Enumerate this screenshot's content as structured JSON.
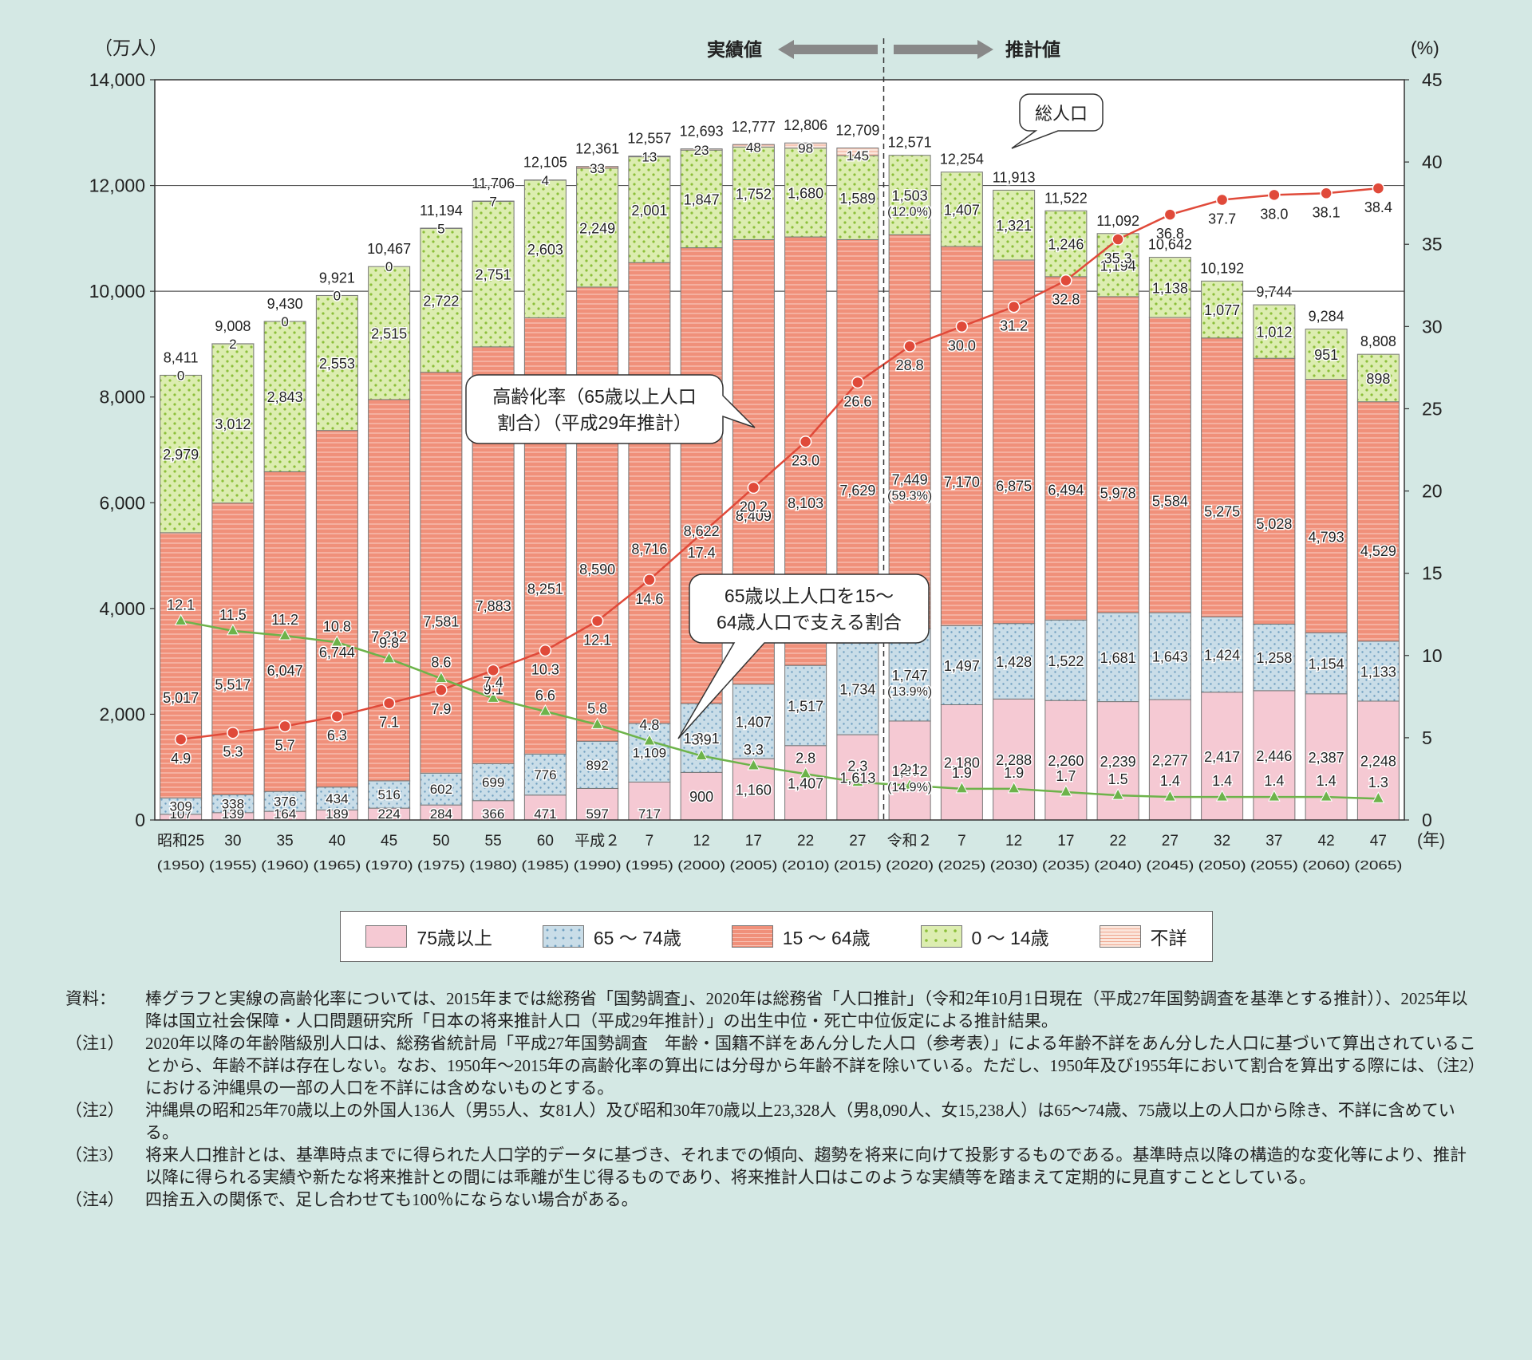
{
  "chart_data": {
    "type": "bar",
    "stacked": true,
    "y_unit_left": "（万人）",
    "y_unit_right": "(%)",
    "x_unit": "(年)",
    "ylim_left": [
      0,
      14000
    ],
    "ylim_right": [
      0,
      45
    ],
    "left_ticks": [
      "0",
      "2,000",
      "4,000",
      "6,000",
      "8,000",
      "10,000",
      "12,000",
      "14,000"
    ],
    "right_ticks": [
      "0",
      "5",
      "10",
      "15",
      "20",
      "25",
      "30",
      "35",
      "40",
      "45"
    ],
    "categories": [
      {
        "era": "昭和25",
        "year": "(1950)"
      },
      {
        "era": "30",
        "year": "(1955)"
      },
      {
        "era": "35",
        "year": "(1960)"
      },
      {
        "era": "40",
        "year": "(1965)"
      },
      {
        "era": "45",
        "year": "(1970)"
      },
      {
        "era": "50",
        "year": "(1975)"
      },
      {
        "era": "55",
        "year": "(1980)"
      },
      {
        "era": "60",
        "year": "(1985)"
      },
      {
        "era": "平成２",
        "year": "(1990)"
      },
      {
        "era": "7",
        "year": "(1995)"
      },
      {
        "era": "12",
        "year": "(2000)"
      },
      {
        "era": "17",
        "year": "(2005)"
      },
      {
        "era": "22",
        "year": "(2010)"
      },
      {
        "era": "27",
        "year": "(2015)"
      },
      {
        "era": "令和２",
        "year": "(2020)"
      },
      {
        "era": "7",
        "year": "(2025)"
      },
      {
        "era": "12",
        "year": "(2030)"
      },
      {
        "era": "17",
        "year": "(2035)"
      },
      {
        "era": "22",
        "year": "(2040)"
      },
      {
        "era": "27",
        "year": "(2045)"
      },
      {
        "era": "32",
        "year": "(2050)"
      },
      {
        "era": "37",
        "year": "(2055)"
      },
      {
        "era": "42",
        "year": "(2060)"
      },
      {
        "era": "47",
        "year": "(2065)"
      }
    ],
    "series": [
      {
        "name": "75歳以上",
        "color": "#f5c9d3",
        "pattern": "plain",
        "values": [
          107,
          139,
          164,
          189,
          224,
          284,
          366,
          471,
          597,
          717,
          900,
          1160,
          1407,
          1613,
          1872,
          2180,
          2288,
          2260,
          2239,
          2277,
          2417,
          2446,
          2387,
          2248
        ],
        "labels": [
          "107",
          "139",
          "164",
          "189",
          "224",
          "284",
          "366",
          "471",
          "597",
          "717",
          "900",
          "1,160",
          "1,407",
          "1,613",
          "1,872",
          "2,180",
          "2,288",
          "2,260",
          "2,239",
          "2,277",
          "2,417",
          "2,446",
          "2,387",
          "2,248"
        ]
      },
      {
        "name": "65 ～ 74歳",
        "color": "#c9dde8",
        "pattern": "dots",
        "values": [
          309,
          338,
          376,
          434,
          516,
          602,
          699,
          776,
          892,
          1109,
          1301,
          1407,
          1517,
          1734,
          1747,
          1497,
          1428,
          1522,
          1681,
          1643,
          1424,
          1258,
          1154,
          1133
        ],
        "labels": [
          "309",
          "338",
          "376",
          "434",
          "516",
          "602",
          "699",
          "776",
          "892",
          "1,109",
          "1,301",
          "1,407",
          "1,517",
          "1,734",
          "1,747",
          "1,497",
          "1,428",
          "1,522",
          "1,681",
          "1,643",
          "1,424",
          "1,258",
          "1,154",
          "1,133"
        ]
      },
      {
        "name": "15 ～ 64歳",
        "color": "#f0907a",
        "pattern": "stripes",
        "values": [
          5017,
          5517,
          6047,
          6744,
          7212,
          7581,
          7883,
          8251,
          8590,
          8716,
          8622,
          8409,
          8103,
          7629,
          7449,
          7170,
          6875,
          6494,
          5978,
          5584,
          5275,
          5028,
          4793,
          4529
        ],
        "labels": [
          "5,017",
          "5,517",
          "6,047",
          "6,744",
          "7,212",
          "7,581",
          "7,883",
          "8,251",
          "8,590",
          "8,716",
          "8,622",
          "8,409",
          "8,103",
          "7,629",
          "7,449",
          "7,170",
          "6,875",
          "6,494",
          "5,978",
          "5,584",
          "5,275",
          "5,028",
          "4,793",
          "4,529"
        ]
      },
      {
        "name": "0 ～ 14歳",
        "color": "#dcedb0",
        "pattern": "greendots",
        "values": [
          2979,
          3012,
          2843,
          2553,
          2515,
          2722,
          2751,
          2603,
          2249,
          2001,
          1847,
          1752,
          1680,
          1589,
          1503,
          1407,
          1321,
          1246,
          1194,
          1138,
          1077,
          1012,
          951,
          898
        ],
        "labels": [
          "2,979",
          "3,012",
          "2,843",
          "2,553",
          "2,515",
          "2,722",
          "2,751",
          "2,603",
          "2,249",
          "2,001",
          "1,847",
          "1,752",
          "1,680",
          "1,589",
          "1,503",
          "1,407",
          "1,321",
          "1,246",
          "1,194",
          "1,138",
          "1,077",
          "1,012",
          "951",
          "898"
        ]
      },
      {
        "name": "不詳",
        "color": "#fbe6dc",
        "pattern": "lightstripes",
        "values": [
          0,
          2,
          0,
          0,
          0,
          5,
          7,
          4,
          33,
          13,
          23,
          48,
          98,
          145,
          0,
          0,
          0,
          0,
          0,
          0,
          0,
          0,
          0,
          0
        ],
        "labels": [
          "0",
          "2",
          "0",
          "0",
          "0",
          "5",
          "7",
          "4",
          "33",
          "13",
          "23",
          "48",
          "98",
          "145",
          "",
          "",
          "",
          "",
          "",
          "",
          "",
          "",
          "",
          ""
        ]
      }
    ],
    "totals": [
      "8,411",
      "9,008",
      "9,430",
      "9,921",
      "10,467",
      "11,194",
      "11,706",
      "12,105",
      "12,361",
      "12,557",
      "12,693",
      "12,777",
      "12,806",
      "12,709",
      "12,571",
      "12,254",
      "11,913",
      "11,522",
      "11,092",
      "10,642",
      "10,192",
      "9,744",
      "9,284",
      "8,808"
    ],
    "pct_2020": {
      "young": "(12.0%)",
      "working": "(59.3%)",
      "old65": "(13.9%)",
      "old75": "(14.9%)"
    },
    "aging_rate": {
      "name": "高齢化率（65歳以上人口割合）（平成29年推計）",
      "color": "#e04a3a",
      "values": [
        4.9,
        5.3,
        5.7,
        6.3,
        7.1,
        7.9,
        9.1,
        10.3,
        12.1,
        14.6,
        17.4,
        20.2,
        23.0,
        26.6,
        28.8,
        30.0,
        31.2,
        32.8,
        35.3,
        36.8,
        37.7,
        38.0,
        38.1,
        38.4
      ],
      "labels": [
        "4.9",
        "5.3",
        "5.7",
        "6.3",
        "7.1",
        "7.9",
        "9.1",
        "10.3",
        "12.1",
        "14.6",
        "17.4",
        "20.2",
        "23.0",
        "26.6",
        "28.8",
        "30.0",
        "31.2",
        "32.8",
        "35.3",
        "36.8",
        "37.7",
        "38.0",
        "38.1",
        "38.4"
      ]
    },
    "support_ratio": {
      "name": "65歳以上人口を15～64歳人口で支える割合",
      "color": "#6db34a",
      "values": [
        12.1,
        11.5,
        11.2,
        10.8,
        9.8,
        8.6,
        7.4,
        6.6,
        5.8,
        4.8,
        3.9,
        3.3,
        2.8,
        2.3,
        2.1,
        1.9,
        1.9,
        1.7,
        1.5,
        1.4,
        1.4,
        1.4,
        1.4,
        1.3
      ],
      "labels": [
        "12.1",
        "11.5",
        "11.2",
        "10.8",
        "9.8",
        "8.6",
        "7.4",
        "6.6",
        "5.8",
        "4.8",
        "3.9",
        "3.3",
        "2.8",
        "2.3",
        "2.1",
        "1.9",
        "1.9",
        "1.7",
        "1.5",
        "1.4",
        "1.4",
        "1.4",
        "1.4",
        "1.3"
      ]
    },
    "annotations": {
      "actual": "実績値",
      "projected": "推計値",
      "total_pop": "総人口",
      "aging_line1": "高齢化率（65歳以上人口",
      "aging_line2": "割合）（平成29年推計）",
      "support_line1": "65歳以上人口を15～",
      "support_line2": "64歳人口で支える割合"
    }
  },
  "legend": [
    {
      "label": "75歳以上",
      "color": "#f5c9d3",
      "pattern": "plain"
    },
    {
      "label": "65 ～ 74歳",
      "color": "#c9dde8",
      "pattern": "dots"
    },
    {
      "label": "15 ～ 64歳",
      "color": "#f0907a",
      "pattern": "stripes"
    },
    {
      "label": "0 ～ 14歳",
      "color": "#dcedb0",
      "pattern": "greendots"
    },
    {
      "label": "不詳",
      "color": "#fbe6dc",
      "pattern": "lightstripes"
    }
  ],
  "notes": [
    {
      "label": "資料：",
      "text": "棒グラフと実線の高齢化率については、2015年までは総務省「国勢調査」、2020年は総務省「人口推計」（令和2年10月1日現在（平成27年国勢調査を基準とする推計））、2025年以降は国立社会保障・人口問題研究所「日本の将来推計人口（平成29年推計）」の出生中位・死亡中位仮定による推計結果。"
    },
    {
      "label": "（注1）",
      "text": "2020年以降の年齢階級別人口は、総務省統計局「平成27年国勢調査　年齢・国籍不詳をあん分した人口（参考表）」による年齢不詳をあん分した人口に基づいて算出されていることから、年齢不詳は存在しない。なお、1950年～2015年の高齢化率の算出には分母から年齢不詳を除いている。ただし、1950年及び1955年において割合を算出する際には、（注2）における沖縄県の一部の人口を不詳には含めないものとする。"
    },
    {
      "label": "（注2）",
      "text": "沖縄県の昭和25年70歳以上の外国人136人（男55人、女81人）及び昭和30年70歳以上23,328人（男8,090人、女15,238人）は65～74歳、75歳以上の人口から除き、不詳に含めている。"
    },
    {
      "label": "（注3）",
      "text": "将来人口推計とは、基準時点までに得られた人口学的データに基づき、それまでの傾向、趨勢を将来に向けて投影するものである。基準時点以降の構造的な変化等により、推計以降に得られる実績や新たな将来推計との間には乖離が生じ得るものであり、将来推計人口はこのような実績等を踏まえて定期的に見直すこととしている。"
    },
    {
      "label": "（注4）",
      "text": "四捨五入の関係で、足し合わせても100％にならない場合がある。"
    }
  ]
}
